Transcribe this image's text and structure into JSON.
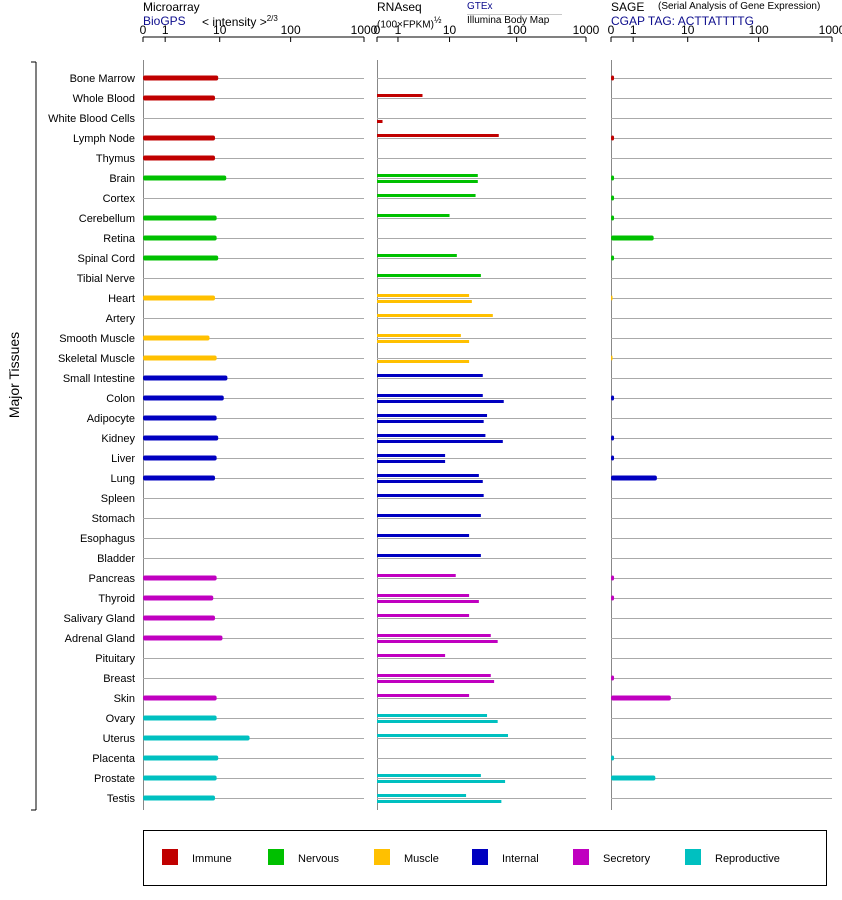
{
  "chart_data": {
    "type": "bar",
    "orientation": "horizontal",
    "y_group_label": "Major Tissues",
    "tick_values": [
      0,
      1,
      10,
      100,
      1000
    ],
    "tick_labels": [
      "0",
      "1",
      "10",
      "100",
      "1000"
    ],
    "xlim": [
      0,
      1000
    ],
    "tissues": [
      "Bone Marrow",
      "Whole Blood",
      "White Blood Cells",
      "Lymph Node",
      "Thymus",
      "Brain",
      "Cortex",
      "Cerebellum",
      "Retina",
      "Spinal Cord",
      "Tibial Nerve",
      "Heart",
      "Artery",
      "Smooth Muscle",
      "Skeletal Muscle",
      "Small Intestine",
      "Colon",
      "Adipocyte",
      "Kidney",
      "Liver",
      "Lung",
      "Spleen",
      "Stomach",
      "Esophagus",
      "Bladder",
      "Pancreas",
      "Thyroid",
      "Salivary Gland",
      "Adrenal Gland",
      "Pituitary",
      "Breast",
      "Skin",
      "Ovary",
      "Uterus",
      "Placenta",
      "Prostate",
      "Testis"
    ],
    "tissue_groups": [
      "Immune",
      "Immune",
      "Immune",
      "Immune",
      "Immune",
      "Nervous",
      "Nervous",
      "Nervous",
      "Nervous",
      "Nervous",
      "Nervous",
      "Muscle",
      "Muscle",
      "Muscle",
      "Muscle",
      "Internal",
      "Internal",
      "Internal",
      "Internal",
      "Internal",
      "Internal",
      "Internal",
      "Internal",
      "Internal",
      "Internal",
      "Secretory",
      "Secretory",
      "Secretory",
      "Secretory",
      "Secretory",
      "Secretory",
      "Secretory",
      "Reproductive",
      "Reproductive",
      "Reproductive",
      "Reproductive",
      "Reproductive"
    ],
    "panels": [
      {
        "name": "Microarray",
        "source": "BioGPS",
        "scale_label": "< intensity >",
        "scale_exponent": "2/3",
        "values": [
          9.5,
          8.5,
          null,
          8.5,
          8.5,
          12.5,
          null,
          9,
          9,
          9.5,
          null,
          8.5,
          null,
          7,
          9,
          13,
          11.5,
          9,
          9.5,
          9,
          8.5,
          null,
          null,
          null,
          null,
          9,
          8,
          8.5,
          11,
          null,
          null,
          9,
          9,
          27,
          9.5,
          9,
          8.5
        ]
      },
      {
        "name": "RNAseq",
        "scale_label": "(100×FPKM)",
        "scale_exponent": "½",
        "source": "GTEx",
        "source2": "Illumina Body Map",
        "values_gtex": [
          null,
          3.5,
          null,
          55,
          null,
          27,
          25,
          10,
          null,
          13,
          30,
          20,
          45,
          15,
          null,
          32,
          32,
          37,
          35,
          8.5,
          28,
          33,
          30,
          20,
          30,
          12.5,
          20,
          20,
          42,
          8.5,
          42,
          20,
          37,
          75,
          null,
          30,
          18
        ],
        "values_ibm": [
          null,
          null,
          0.2,
          null,
          null,
          27,
          null,
          null,
          null,
          null,
          null,
          22,
          null,
          20,
          20,
          null,
          65,
          33,
          63,
          8.5,
          32,
          null,
          null,
          null,
          null,
          null,
          28,
          null,
          53,
          null,
          47,
          null,
          53,
          null,
          null,
          68,
          60
        ]
      },
      {
        "name": "SAGE",
        "note": "(Serial Analysis of Gene Expression)",
        "tag_label": "CGAP TAG: ACTTATTTTG",
        "values": [
          0.1,
          null,
          null,
          0.1,
          null,
          0.1,
          0.1,
          0.1,
          2.8,
          0.1,
          null,
          0.05,
          null,
          null,
          0.05,
          null,
          0.1,
          null,
          0.1,
          0.1,
          3.2,
          null,
          null,
          null,
          null,
          0.1,
          0.1,
          null,
          null,
          null,
          0.1,
          5.5,
          null,
          null,
          0.1,
          3,
          null
        ]
      }
    ],
    "legend": [
      {
        "label": "Immune",
        "color": "#c00000"
      },
      {
        "label": "Nervous",
        "color": "#00c000"
      },
      {
        "label": "Muscle",
        "color": "#ffc000"
      },
      {
        "label": "Internal",
        "color": "#0000c0"
      },
      {
        "label": "Secretory",
        "color": "#c000c0"
      },
      {
        "label": "Reproductive",
        "color": "#00c0c0"
      }
    ]
  }
}
